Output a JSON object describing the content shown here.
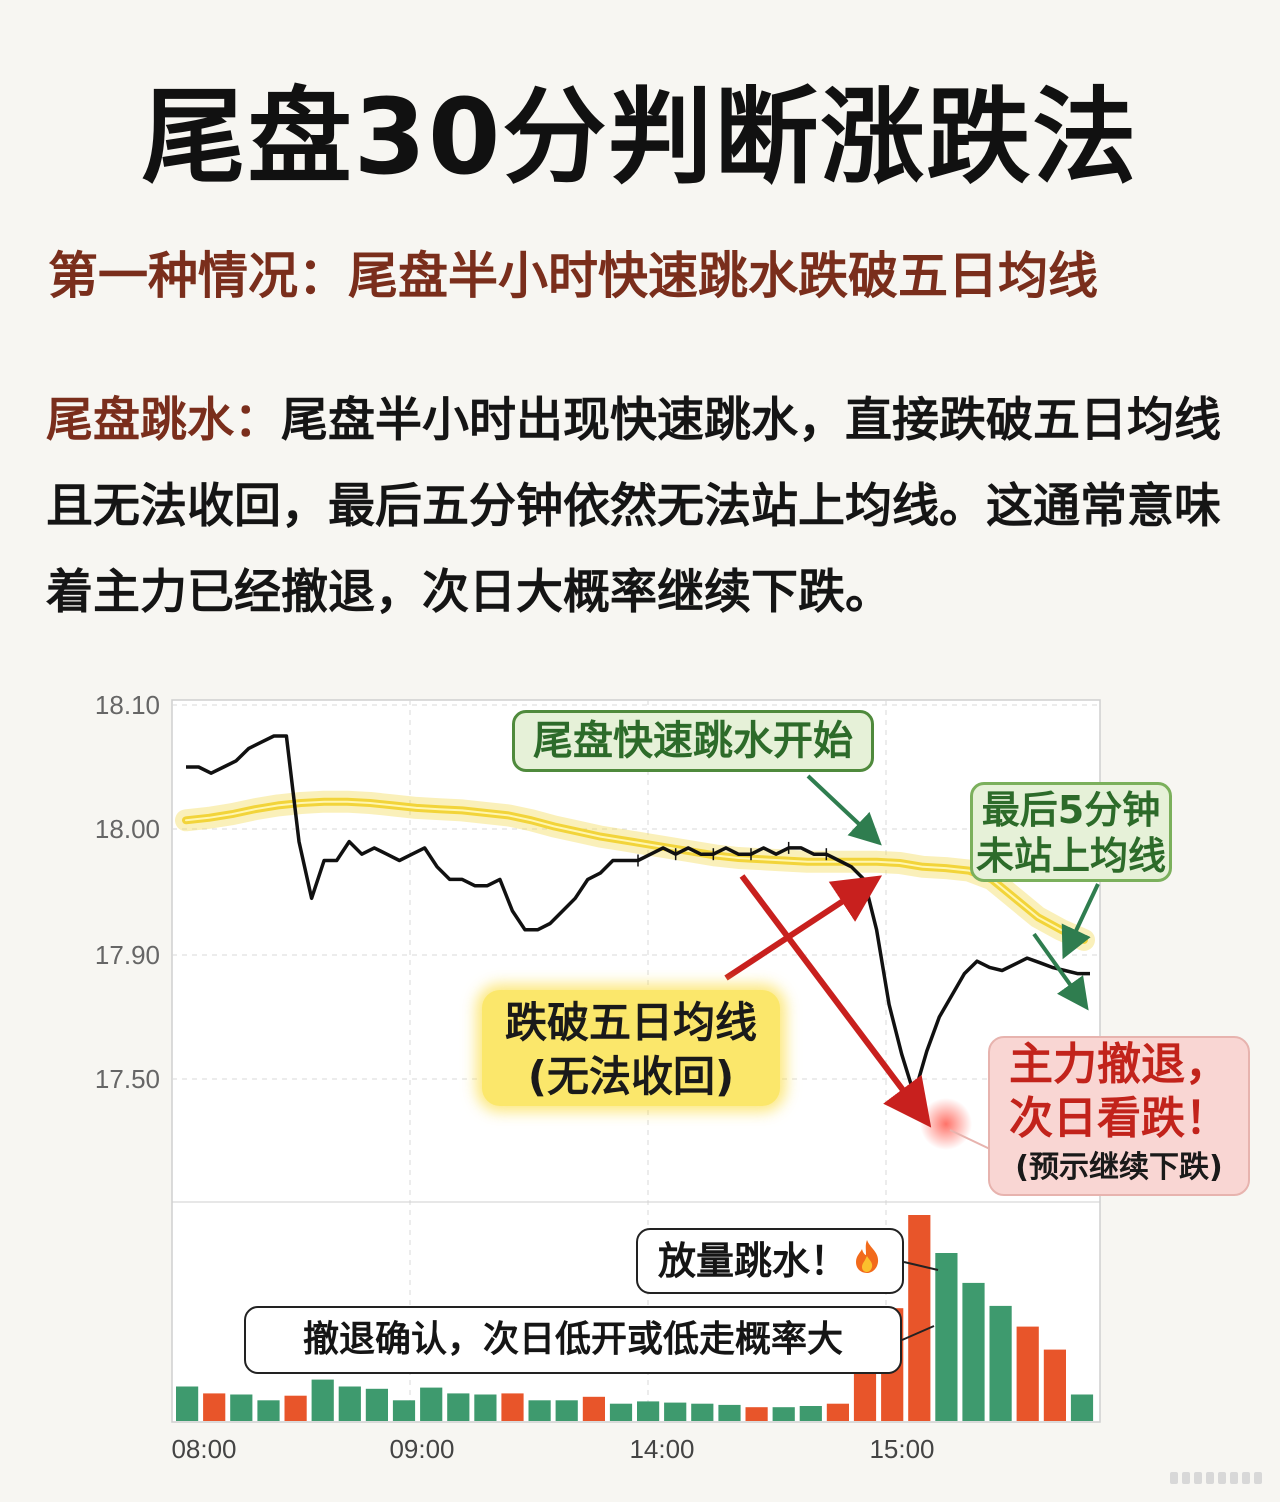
{
  "title": "尾盘30分判断涨跌法",
  "subtitle": "第一种情况：尾盘半小时快速跳水跌破五日均线",
  "body": {
    "lead": "尾盘跳水：",
    "text": "尾盘半小时出现快速跳水，直接跌破五日均线且无法收回，最后五分钟依然无法站上均线。这通常意味着主力已经撤退，次日大概率继续下跌。"
  },
  "annotations": {
    "dive_start": "尾盘快速跳水开始",
    "last5_line1": "最后5分钟",
    "last5_line2": "未站上均线",
    "break_line1": "跌破五日均线",
    "break_line2": "(无法收回)",
    "retreat_line1": "主力撤退，",
    "retreat_line2": "次日看跌！",
    "retreat_line3": "(预示继续下跌)",
    "volume": "放量跳水！",
    "confirm": "撤退确认，次日低开或低走概率大"
  },
  "colors": {
    "price_line": "#111111",
    "ma5_line": "#f2d43a",
    "volume_up": "#e8552a",
    "volume_down": "#3e9a6e",
    "arrow_red": "#c8201e",
    "arrow_green": "#2f7d4f"
  },
  "icons": {
    "fire": "fire-icon"
  },
  "chart_data": {
    "type": "line",
    "y_ticks": [
      "18.10",
      "18.00",
      "17.90",
      "17.50"
    ],
    "x_ticks": [
      "08:00",
      "09:00",
      "14:00",
      "15:00"
    ],
    "grid": true,
    "series": [
      {
        "role": "price",
        "values": [
          18.05,
          18.05,
          18.045,
          18.05,
          18.055,
          18.065,
          18.07,
          18.075,
          18.075,
          17.99,
          17.945,
          17.975,
          17.975,
          17.99,
          17.98,
          17.985,
          17.98,
          17.975,
          17.98,
          17.985,
          17.97,
          17.96,
          17.96,
          17.955,
          17.955,
          17.96,
          17.935,
          17.92,
          17.92,
          17.925,
          17.935,
          17.945,
          17.96,
          17.965,
          17.975,
          17.975,
          17.975,
          17.98,
          17.985,
          17.98,
          17.985,
          17.98,
          17.98,
          17.985,
          17.98,
          17.98,
          17.985,
          17.98,
          17.985,
          17.985,
          17.98,
          17.98,
          17.975,
          17.97,
          17.96,
          17.92,
          17.74,
          17.58,
          17.45,
          17.59,
          17.7,
          17.77,
          17.84,
          17.88,
          17.86,
          17.85,
          17.87,
          17.89,
          17.875,
          17.86,
          17.85,
          17.84,
          17.84
        ]
      },
      {
        "role": "ma5",
        "values": [
          18.007,
          18.009,
          18.012,
          18.016,
          18.019,
          18.021,
          18.022,
          18.022,
          18.021,
          18.019,
          18.017,
          18.016,
          18.015,
          18.013,
          18.011,
          18.007,
          18.002,
          17.998,
          17.994,
          17.991,
          17.988,
          17.985,
          17.982,
          17.979,
          17.977,
          17.976,
          17.975,
          17.974,
          17.974,
          17.974,
          17.974,
          17.973,
          17.97,
          17.969,
          17.967,
          17.96,
          17.945,
          17.93,
          17.92,
          17.912
        ]
      }
    ],
    "volume": {
      "values": [
        3.0,
        2.4,
        2.3,
        1.8,
        2.2,
        3.6,
        3.0,
        2.8,
        1.8,
        2.9,
        2.4,
        2.3,
        2.4,
        1.8,
        1.8,
        2.1,
        1.5,
        1.7,
        1.6,
        1.5,
        1.4,
        1.2,
        1.2,
        1.3,
        1.5,
        4.7,
        9.8,
        17.9,
        14.6,
        12.0,
        10.0,
        8.2,
        6.2,
        2.3
      ],
      "colors": [
        "down",
        "up",
        "down",
        "down",
        "up",
        "down",
        "down",
        "down",
        "down",
        "down",
        "down",
        "down",
        "up",
        "down",
        "down",
        "up",
        "down",
        "down",
        "down",
        "down",
        "down",
        "up",
        "down",
        "down",
        "up",
        "up",
        "up",
        "up",
        "down",
        "down",
        "down",
        "up",
        "up",
        "down"
      ]
    }
  }
}
